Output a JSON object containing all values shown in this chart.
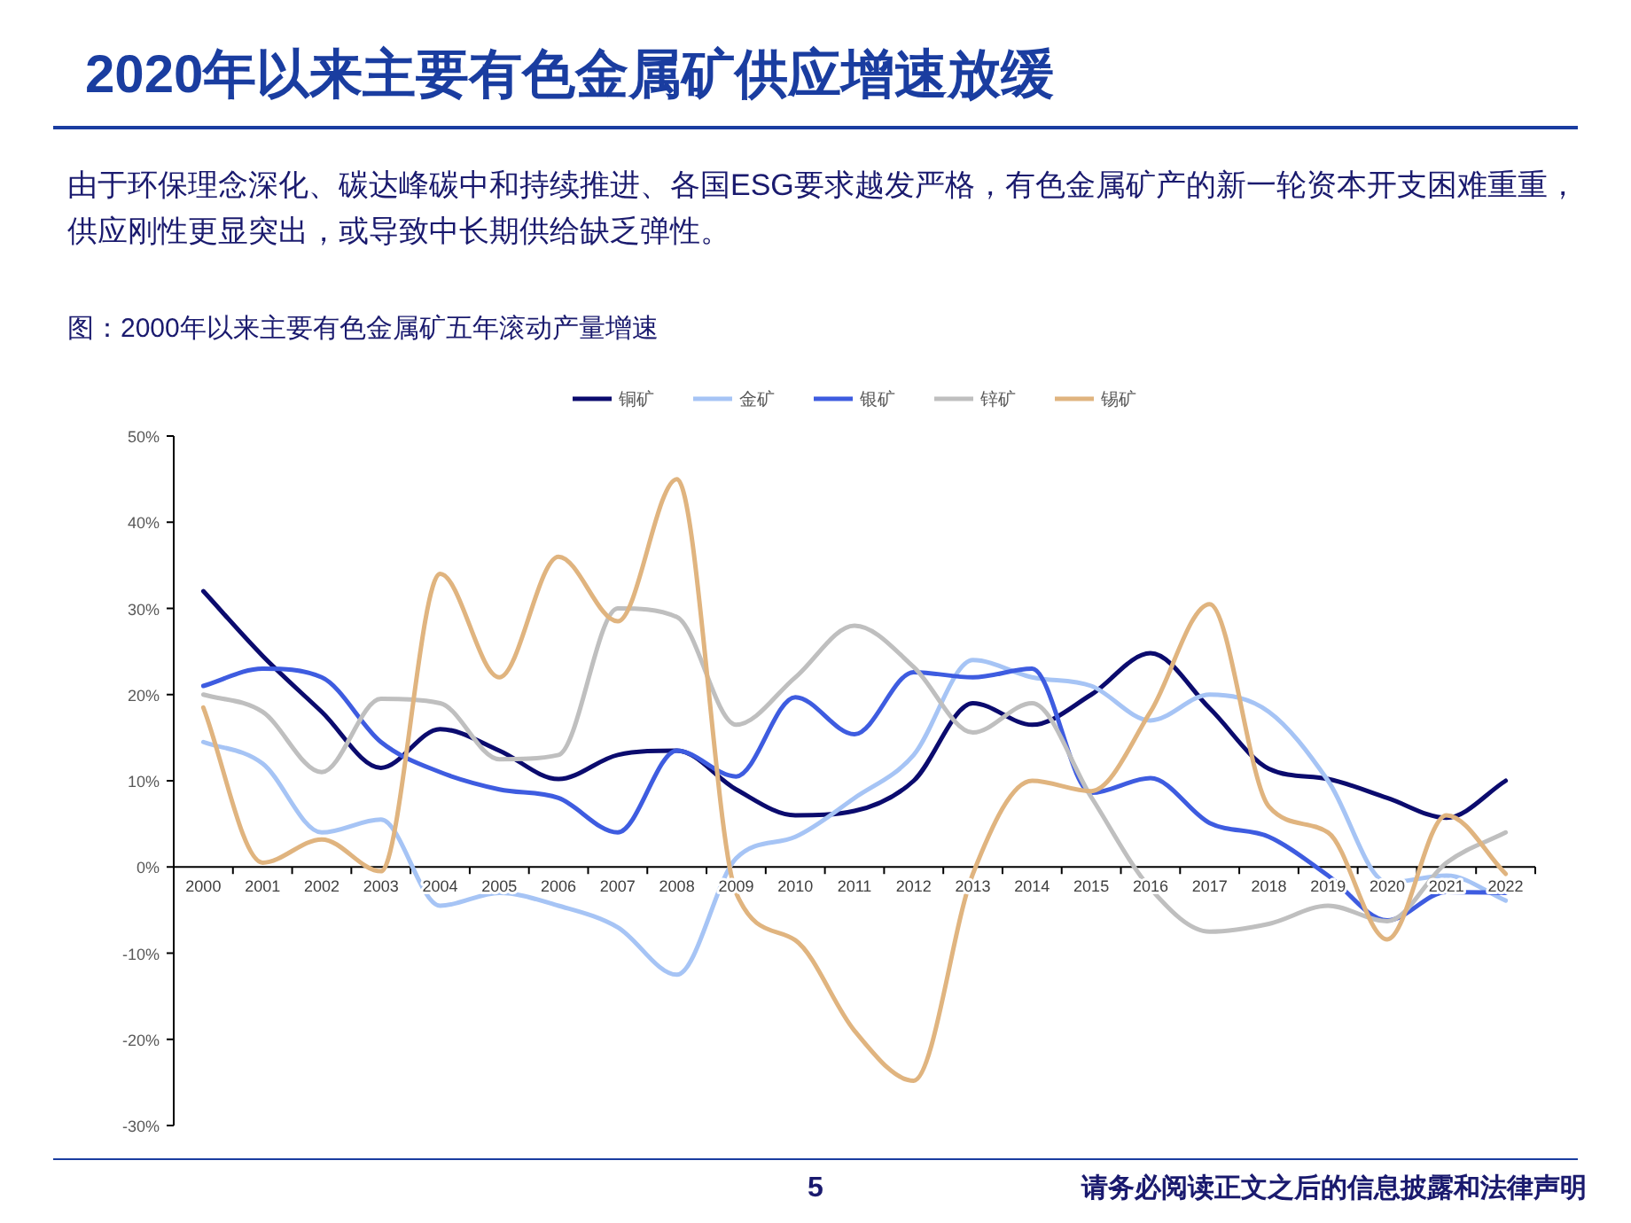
{
  "chart_data": {
    "type": "line",
    "title": "2020年以来主要有色金属矿供应增速放缓",
    "subtitle": "图：2000年以来主要有色金属矿五年滚动产量增速",
    "annotations": [
      "由于环保理念深化、碳达峰碳中和持续推进、各国ESG要求越发严格，有色金属矿产的新一轮资本开支困难重重，供应刚性更显突出，或导致中长期供给缺乏弹性。",
      "5",
      "请务必阅读正文之后的信息披露和法律声明"
    ],
    "categories": [
      "2000",
      "2001",
      "2002",
      "2003",
      "2004",
      "2005",
      "2006",
      "2007",
      "2008",
      "2009",
      "2010",
      "2011",
      "2012",
      "2013",
      "2014",
      "2015",
      "2016",
      "2017",
      "2018",
      "2019",
      "2020",
      "2021",
      "2022"
    ],
    "ylim": [
      -30,
      50
    ],
    "yticks": [
      {
        "value": -30,
        "label": "-30%"
      },
      {
        "value": -20,
        "label": "-20%"
      },
      {
        "value": -10,
        "label": "-10%"
      },
      {
        "value": 0,
        "label": "0%"
      },
      {
        "value": 10,
        "label": "10%"
      },
      {
        "value": 20,
        "label": "20%"
      },
      {
        "value": 30,
        "label": "30%"
      },
      {
        "value": 40,
        "label": "40%"
      },
      {
        "value": 50,
        "label": "50%"
      }
    ],
    "legend": "top",
    "grid": false,
    "marker": "none",
    "line_style": "solid",
    "series": [
      {
        "name": "铜矿",
        "color": "#0b0b6e",
        "values": [
          32,
          24.5,
          18,
          11.5,
          16,
          13.5,
          10.2,
          13,
          13.5,
          9,
          6,
          6.5,
          10,
          19,
          16.5,
          20,
          24.8,
          18.4,
          11.4,
          10.2,
          8,
          5.7,
          10
        ]
      },
      {
        "name": "金矿",
        "color": "#a6c4f5",
        "values": [
          14.5,
          12,
          4,
          5.5,
          -4.5,
          -3,
          -4.5,
          -7,
          -12.5,
          1,
          3.5,
          8,
          13,
          24,
          22,
          21,
          17,
          20,
          18,
          10,
          -1.8,
          -1,
          -3.9
        ]
      },
      {
        "name": "银矿",
        "color": "#3e5ce0",
        "values": [
          21,
          23,
          22,
          14.5,
          11,
          9,
          8,
          4,
          13.5,
          10.5,
          19.7,
          15.4,
          22.6,
          22,
          23,
          8.6,
          10.3,
          5.1,
          3.5,
          -1,
          -6.2,
          -2.9,
          -3
        ]
      },
      {
        "name": "锌矿",
        "color": "#bfbfbf",
        "values": [
          20,
          18,
          11,
          19.5,
          19,
          12.5,
          13,
          30,
          29,
          16.5,
          22,
          28,
          23.2,
          15.6,
          19,
          8.1,
          -2.5,
          -7.5,
          -6.6,
          -4.5,
          -6.3,
          0.5,
          4
        ]
      },
      {
        "name": "锡矿",
        "color": "#e0b47f",
        "values": [
          18.5,
          0.5,
          3.2,
          -0.5,
          34,
          22,
          36,
          28.5,
          45,
          -3,
          -8.5,
          -19,
          -24.8,
          -0.8,
          10,
          8.8,
          18,
          30.5,
          7,
          4,
          -8.4,
          6,
          -0.8
        ]
      }
    ]
  }
}
